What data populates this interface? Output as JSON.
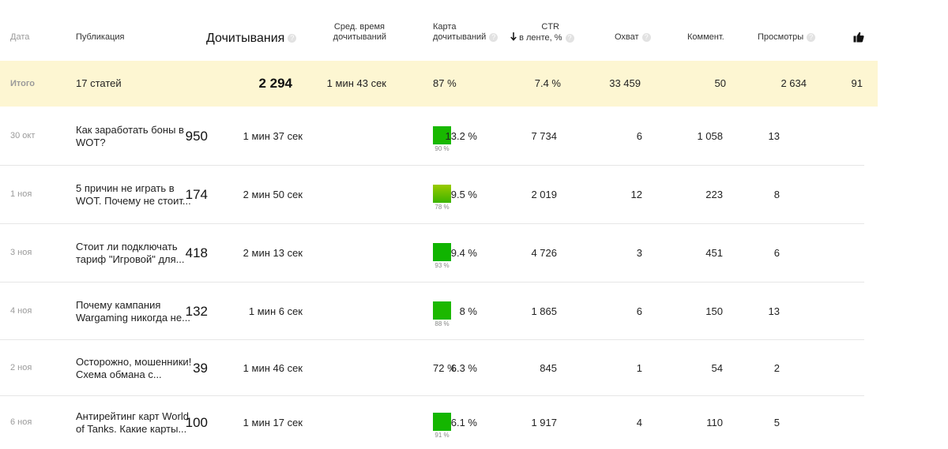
{
  "header": {
    "date": "Дата",
    "publication": "Публикация",
    "reads": "Дочитывания",
    "avg_time_line1": "Сред. время",
    "avg_time_line2": "дочитываний",
    "map_line1": "Карта",
    "map_line2": "дочитываний",
    "ctr_line1": "CTR",
    "ctr_line2": "в ленте, %",
    "ctr_sort_icon": "arrow-down-icon",
    "reach": "Охват",
    "comments": "Коммент.",
    "views": "Просмотры",
    "likes_icon": "thumbs-up-icon",
    "help_mark": "?"
  },
  "total": {
    "label": "Итого",
    "publication": "17 статей",
    "reads": "2 294",
    "avg_time": "1 мин 43 сек",
    "map": "87 %",
    "ctr": "7.4 %",
    "reach": "33 459",
    "comments": "50",
    "views": "2 634",
    "likes": "91"
  },
  "rows": [
    {
      "date": "30 окт",
      "title_1": "Как заработать боны в",
      "title_2": "WOT?",
      "reads": "950",
      "avg_time": "1 мин 37 сек",
      "map_pct": "90 %",
      "map_color": "#18b800",
      "ctr": "13.2 %",
      "reach": "7 734",
      "comments": "6",
      "views": "1 058",
      "likes": "13"
    },
    {
      "date": "1 ноя",
      "title_1": "5 причин не играть в",
      "title_2": "WOT. Почему не стоит...",
      "reads": "174",
      "avg_time": "2 мин 50 сек",
      "map_pct": "78 %",
      "map_color": "#5cb800",
      "ctr": "9.5 %",
      "reach": "2 019",
      "comments": "12",
      "views": "223",
      "likes": "8"
    },
    {
      "date": "3 ноя",
      "title_1": "Стоит ли подключать",
      "title_2": "тариф \"Игровой\" для...",
      "reads": "418",
      "avg_time": "2 мин 13 сек",
      "map_pct": "93 %",
      "map_color": "#10b400",
      "ctr": "9.4 %",
      "reach": "4 726",
      "comments": "3",
      "views": "451",
      "likes": "6"
    },
    {
      "date": "4 ноя",
      "title_1": "Почему кампания",
      "title_2": "Wargaming никогда не...",
      "reads": "132",
      "avg_time": "1 мин 6 сек",
      "map_pct": "88 %",
      "map_color": "#1cb800",
      "ctr": "8 %",
      "reach": "1 865",
      "comments": "6",
      "views": "150",
      "likes": "13"
    },
    {
      "date": "2 ноя",
      "title_1": "Осторожно, мошенники!",
      "title_2": "Схема обмана с...",
      "reads": "39",
      "avg_time": "1 мин 46 сек",
      "map_pct": "72 %",
      "map_color": "",
      "ctr": "6.3 %",
      "reach": "845",
      "comments": "1",
      "views": "54",
      "likes": "2"
    },
    {
      "date": "6 ноя",
      "title_1": "Антирейтинг карт World",
      "title_2": "of Tanks. Какие карты...",
      "reads": "100",
      "avg_time": "1 мин 17 сек",
      "map_pct": "91 %",
      "map_color": "#14b600",
      "ctr": "6.1 %",
      "reach": "1 917",
      "comments": "4",
      "views": "110",
      "likes": "5"
    }
  ]
}
